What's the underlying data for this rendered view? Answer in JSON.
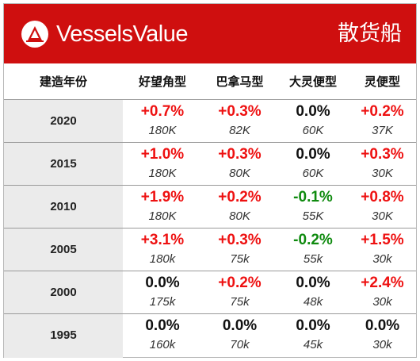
{
  "header": {
    "brand": "VesselsValue",
    "title": "散货船",
    "brand_color": "#cf0f0f"
  },
  "columns": {
    "year": "建造年份",
    "capesize": "好望角型",
    "panamax": "巴拿马型",
    "supramax": "大灵便型",
    "handysize": "灵便型"
  },
  "colors": {
    "increase": "#ee1111",
    "unchanged": "#111111",
    "decrease": "#0e8a0e",
    "year_background": "#ebebeb"
  },
  "rows": [
    {
      "year": "2020",
      "cells": [
        {
          "pct": "+0.7%",
          "size": "180K",
          "trend": "up"
        },
        {
          "pct": "+0.3%",
          "size": "82K",
          "trend": "up"
        },
        {
          "pct": "0.0%",
          "size": "60K",
          "trend": "flat"
        },
        {
          "pct": "+0.2%",
          "size": "37K",
          "trend": "up"
        }
      ]
    },
    {
      "year": "2015",
      "cells": [
        {
          "pct": "+1.0%",
          "size": "180K",
          "trend": "up"
        },
        {
          "pct": "+0.3%",
          "size": "80K",
          "trend": "up"
        },
        {
          "pct": "0.0%",
          "size": "60K",
          "trend": "flat"
        },
        {
          "pct": "+0.3%",
          "size": "30K",
          "trend": "up"
        }
      ]
    },
    {
      "year": "2010",
      "cells": [
        {
          "pct": "+1.9%",
          "size": "180K",
          "trend": "up"
        },
        {
          "pct": "+0.2%",
          "size": "80K",
          "trend": "up"
        },
        {
          "pct": "-0.1%",
          "size": "55K",
          "trend": "down"
        },
        {
          "pct": "+0.8%",
          "size": "30K",
          "trend": "up"
        }
      ]
    },
    {
      "year": "2005",
      "cells": [
        {
          "pct": "+3.1%",
          "size": "180k",
          "trend": "up"
        },
        {
          "pct": "+0.3%",
          "size": "75k",
          "trend": "up"
        },
        {
          "pct": "-0.2%",
          "size": "55k",
          "trend": "down"
        },
        {
          "pct": "+1.5%",
          "size": "30k",
          "trend": "up"
        }
      ]
    },
    {
      "year": "2000",
      "cells": [
        {
          "pct": "0.0%",
          "size": "175k",
          "trend": "flat"
        },
        {
          "pct": "+0.2%",
          "size": "75k",
          "trend": "up"
        },
        {
          "pct": "0.0%",
          "size": "48k",
          "trend": "flat"
        },
        {
          "pct": "+2.4%",
          "size": "30k",
          "trend": "up"
        }
      ]
    },
    {
      "year": "1995",
      "cells": [
        {
          "pct": "0.0%",
          "size": "160k",
          "trend": "flat"
        },
        {
          "pct": "0.0%",
          "size": "70k",
          "trend": "flat"
        },
        {
          "pct": "0.0%",
          "size": "45k",
          "trend": "flat"
        },
        {
          "pct": "0.0%",
          "size": "30k",
          "trend": "flat"
        }
      ]
    }
  ]
}
